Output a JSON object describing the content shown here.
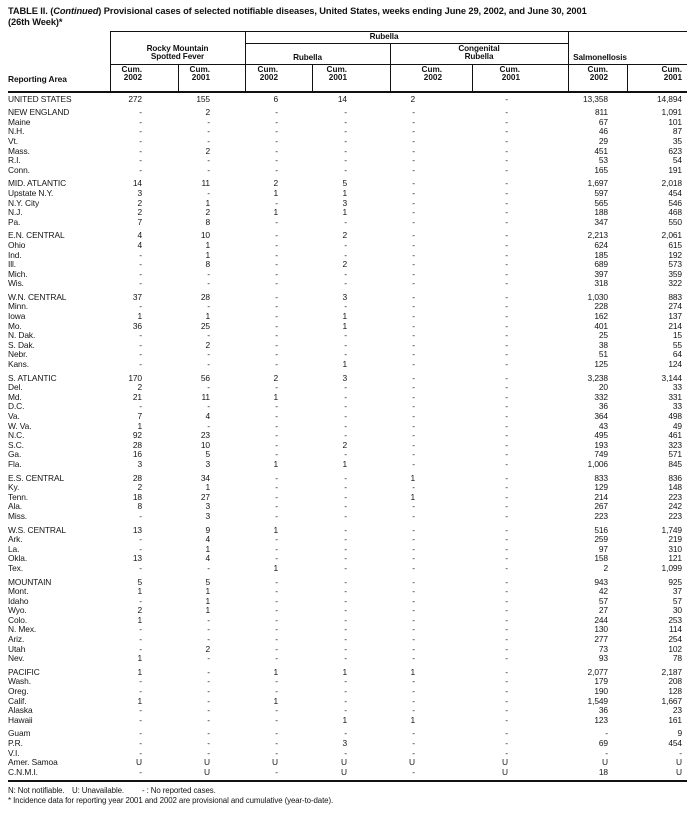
{
  "title": {
    "prefix": "TABLE II. (",
    "continued": "Continued",
    "rest": ") Provisional cases of selected notifiable diseases, United States, weeks ending June 29, 2002, and June 30, 2001",
    "line2": "(26th Week)*"
  },
  "header": {
    "reporting_area": "Reporting Area",
    "supergroup": "Rubella",
    "rmsf_line1": "Rocky Mountain",
    "rmsf_line2": "Spotted Fever",
    "rubella": "Rubella",
    "congenital_line1": "Congenital",
    "congenital_line2": "Rubella",
    "salmonellosis": "Salmonellosis",
    "cum": "Cum.",
    "y2002": "2002",
    "y2001": "2001"
  },
  "table": {
    "column_keys": [
      "Rocky Mountain Spotted Fever Cum. 2002",
      "Rocky Mountain Spotted Fever Cum. 2001",
      "Rubella Cum. 2002",
      "Rubella Cum. 2001",
      "Congenital Rubella Cum. 2002",
      "Congenital Rubella Cum. 2001",
      "Salmonellosis Cum. 2002",
      "Salmonellosis Cum. 2001"
    ],
    "rows": [
      {
        "area": "UNITED STATES",
        "gap": false,
        "values": [
          "272",
          "155",
          "6",
          "14",
          "2",
          "-",
          "13,358",
          "14,894"
        ]
      },
      {
        "area": "NEW ENGLAND",
        "gap": true,
        "values": [
          "-",
          "2",
          "-",
          "-",
          "-",
          "-",
          "811",
          "1,091"
        ]
      },
      {
        "area": "Maine",
        "gap": false,
        "values": [
          "-",
          "-",
          "-",
          "-",
          "-",
          "-",
          "67",
          "101"
        ]
      },
      {
        "area": "N.H.",
        "gap": false,
        "values": [
          "-",
          "-",
          "-",
          "-",
          "-",
          "-",
          "46",
          "87"
        ]
      },
      {
        "area": "Vt.",
        "gap": false,
        "values": [
          "-",
          "-",
          "-",
          "-",
          "-",
          "-",
          "29",
          "35"
        ]
      },
      {
        "area": "Mass.",
        "gap": false,
        "values": [
          "-",
          "2",
          "-",
          "-",
          "-",
          "-",
          "451",
          "623"
        ]
      },
      {
        "area": "R.I.",
        "gap": false,
        "values": [
          "-",
          "-",
          "-",
          "-",
          "-",
          "-",
          "53",
          "54"
        ]
      },
      {
        "area": "Conn.",
        "gap": false,
        "values": [
          "-",
          "-",
          "-",
          "-",
          "-",
          "-",
          "165",
          "191"
        ]
      },
      {
        "area": "MID. ATLANTIC",
        "gap": true,
        "values": [
          "14",
          "11",
          "2",
          "5",
          "-",
          "-",
          "1,697",
          "2,018"
        ]
      },
      {
        "area": "Upstate N.Y.",
        "gap": false,
        "values": [
          "3",
          "-",
          "1",
          "1",
          "-",
          "-",
          "597",
          "454"
        ]
      },
      {
        "area": "N.Y. City",
        "gap": false,
        "values": [
          "2",
          "1",
          "-",
          "3",
          "-",
          "-",
          "565",
          "546"
        ]
      },
      {
        "area": "N.J.",
        "gap": false,
        "values": [
          "2",
          "2",
          "1",
          "1",
          "-",
          "-",
          "188",
          "468"
        ]
      },
      {
        "area": "Pa.",
        "gap": false,
        "values": [
          "7",
          "8",
          "-",
          "-",
          "-",
          "-",
          "347",
          "550"
        ]
      },
      {
        "area": "E.N. CENTRAL",
        "gap": true,
        "values": [
          "4",
          "10",
          "-",
          "2",
          "-",
          "-",
          "2,213",
          "2,061"
        ]
      },
      {
        "area": "Ohio",
        "gap": false,
        "values": [
          "4",
          "1",
          "-",
          "-",
          "-",
          "-",
          "624",
          "615"
        ]
      },
      {
        "area": "Ind.",
        "gap": false,
        "values": [
          "-",
          "1",
          "-",
          "-",
          "-",
          "-",
          "185",
          "192"
        ]
      },
      {
        "area": "Ill.",
        "gap": false,
        "values": [
          "-",
          "8",
          "-",
          "2",
          "-",
          "-",
          "689",
          "573"
        ]
      },
      {
        "area": "Mich.",
        "gap": false,
        "values": [
          "-",
          "-",
          "-",
          "-",
          "-",
          "-",
          "397",
          "359"
        ]
      },
      {
        "area": "Wis.",
        "gap": false,
        "values": [
          "-",
          "-",
          "-",
          "-",
          "-",
          "-",
          "318",
          "322"
        ]
      },
      {
        "area": "W.N. CENTRAL",
        "gap": true,
        "values": [
          "37",
          "28",
          "-",
          "3",
          "-",
          "-",
          "1,030",
          "883"
        ]
      },
      {
        "area": "Minn.",
        "gap": false,
        "values": [
          "-",
          "-",
          "-",
          "-",
          "-",
          "-",
          "228",
          "274"
        ]
      },
      {
        "area": "Iowa",
        "gap": false,
        "values": [
          "1",
          "1",
          "-",
          "1",
          "-",
          "-",
          "162",
          "137"
        ]
      },
      {
        "area": "Mo.",
        "gap": false,
        "values": [
          "36",
          "25",
          "-",
          "1",
          "-",
          "-",
          "401",
          "214"
        ]
      },
      {
        "area": "N. Dak.",
        "gap": false,
        "values": [
          "-",
          "-",
          "-",
          "-",
          "-",
          "-",
          "25",
          "15"
        ]
      },
      {
        "area": "S. Dak.",
        "gap": false,
        "values": [
          "-",
          "2",
          "-",
          "-",
          "-",
          "-",
          "38",
          "55"
        ]
      },
      {
        "area": "Nebr.",
        "gap": false,
        "values": [
          "-",
          "-",
          "-",
          "-",
          "-",
          "-",
          "51",
          "64"
        ]
      },
      {
        "area": "Kans.",
        "gap": false,
        "values": [
          "-",
          "-",
          "-",
          "1",
          "-",
          "-",
          "125",
          "124"
        ]
      },
      {
        "area": "S. ATLANTIC",
        "gap": true,
        "values": [
          "170",
          "56",
          "2",
          "3",
          "-",
          "-",
          "3,238",
          "3,144"
        ]
      },
      {
        "area": "Del.",
        "gap": false,
        "values": [
          "2",
          "-",
          "-",
          "-",
          "-",
          "-",
          "20",
          "33"
        ]
      },
      {
        "area": "Md.",
        "gap": false,
        "values": [
          "21",
          "11",
          "1",
          "-",
          "-",
          "-",
          "332",
          "331"
        ]
      },
      {
        "area": "D.C.",
        "gap": false,
        "values": [
          "-",
          "-",
          "-",
          "-",
          "-",
          "-",
          "36",
          "33"
        ]
      },
      {
        "area": "Va.",
        "gap": false,
        "values": [
          "7",
          "4",
          "-",
          "-",
          "-",
          "-",
          "364",
          "498"
        ]
      },
      {
        "area": "W. Va.",
        "gap": false,
        "values": [
          "1",
          "-",
          "-",
          "-",
          "-",
          "-",
          "43",
          "49"
        ]
      },
      {
        "area": "N.C.",
        "gap": false,
        "values": [
          "92",
          "23",
          "-",
          "-",
          "-",
          "-",
          "495",
          "461"
        ]
      },
      {
        "area": "S.C.",
        "gap": false,
        "values": [
          "28",
          "10",
          "-",
          "2",
          "-",
          "-",
          "193",
          "323"
        ]
      },
      {
        "area": "Ga.",
        "gap": false,
        "values": [
          "16",
          "5",
          "-",
          "-",
          "-",
          "-",
          "749",
          "571"
        ]
      },
      {
        "area": "Fla.",
        "gap": false,
        "values": [
          "3",
          "3",
          "1",
          "1",
          "-",
          "-",
          "1,006",
          "845"
        ]
      },
      {
        "area": "E.S. CENTRAL",
        "gap": true,
        "values": [
          "28",
          "34",
          "-",
          "-",
          "1",
          "-",
          "833",
          "836"
        ]
      },
      {
        "area": "Ky.",
        "gap": false,
        "values": [
          "2",
          "1",
          "-",
          "-",
          "-",
          "-",
          "129",
          "148"
        ]
      },
      {
        "area": "Tenn.",
        "gap": false,
        "values": [
          "18",
          "27",
          "-",
          "-",
          "1",
          "-",
          "214",
          "223"
        ]
      },
      {
        "area": "Ala.",
        "gap": false,
        "values": [
          "8",
          "3",
          "-",
          "-",
          "-",
          "-",
          "267",
          "242"
        ]
      },
      {
        "area": "Miss.",
        "gap": false,
        "values": [
          "-",
          "3",
          "-",
          "-",
          "-",
          "-",
          "223",
          "223"
        ]
      },
      {
        "area": "W.S. CENTRAL",
        "gap": true,
        "values": [
          "13",
          "9",
          "1",
          "-",
          "-",
          "-",
          "516",
          "1,749"
        ]
      },
      {
        "area": "Ark.",
        "gap": false,
        "values": [
          "-",
          "4",
          "-",
          "-",
          "-",
          "-",
          "259",
          "219"
        ]
      },
      {
        "area": "La.",
        "gap": false,
        "values": [
          "-",
          "1",
          "-",
          "-",
          "-",
          "-",
          "97",
          "310"
        ]
      },
      {
        "area": "Okla.",
        "gap": false,
        "values": [
          "13",
          "4",
          "-",
          "-",
          "-",
          "-",
          "158",
          "121"
        ]
      },
      {
        "area": "Tex.",
        "gap": false,
        "values": [
          "-",
          "-",
          "1",
          "-",
          "-",
          "-",
          "2",
          "1,099"
        ]
      },
      {
        "area": "MOUNTAIN",
        "gap": true,
        "values": [
          "5",
          "5",
          "-",
          "-",
          "-",
          "-",
          "943",
          "925"
        ]
      },
      {
        "area": "Mont.",
        "gap": false,
        "values": [
          "1",
          "1",
          "-",
          "-",
          "-",
          "-",
          "42",
          "37"
        ]
      },
      {
        "area": "Idaho",
        "gap": false,
        "values": [
          "-",
          "1",
          "-",
          "-",
          "-",
          "-",
          "57",
          "57"
        ]
      },
      {
        "area": "Wyo.",
        "gap": false,
        "values": [
          "2",
          "1",
          "-",
          "-",
          "-",
          "-",
          "27",
          "30"
        ]
      },
      {
        "area": "Colo.",
        "gap": false,
        "values": [
          "1",
          "-",
          "-",
          "-",
          "-",
          "-",
          "244",
          "253"
        ]
      },
      {
        "area": "N. Mex.",
        "gap": false,
        "values": [
          "-",
          "-",
          "-",
          "-",
          "-",
          "-",
          "130",
          "114"
        ]
      },
      {
        "area": "Ariz.",
        "gap": false,
        "values": [
          "-",
          "-",
          "-",
          "-",
          "-",
          "-",
          "277",
          "254"
        ]
      },
      {
        "area": "Utah",
        "gap": false,
        "values": [
          "-",
          "2",
          "-",
          "-",
          "-",
          "-",
          "73",
          "102"
        ]
      },
      {
        "area": "Nev.",
        "gap": false,
        "values": [
          "1",
          "-",
          "-",
          "-",
          "-",
          "-",
          "93",
          "78"
        ]
      },
      {
        "area": "PACIFIC",
        "gap": true,
        "values": [
          "1",
          "-",
          "1",
          "1",
          "1",
          "-",
          "2,077",
          "2,187"
        ]
      },
      {
        "area": "Wash.",
        "gap": false,
        "values": [
          "-",
          "-",
          "-",
          "-",
          "-",
          "-",
          "179",
          "208"
        ]
      },
      {
        "area": "Oreg.",
        "gap": false,
        "values": [
          "-",
          "-",
          "-",
          "-",
          "-",
          "-",
          "190",
          "128"
        ]
      },
      {
        "area": "Calif.",
        "gap": false,
        "values": [
          "1",
          "-",
          "1",
          "-",
          "-",
          "-",
          "1,549",
          "1,667"
        ]
      },
      {
        "area": "Alaska",
        "gap": false,
        "values": [
          "-",
          "-",
          "-",
          "-",
          "-",
          "-",
          "36",
          "23"
        ]
      },
      {
        "area": "Hawaii",
        "gap": false,
        "values": [
          "-",
          "-",
          "-",
          "1",
          "1",
          "-",
          "123",
          "161"
        ]
      },
      {
        "area": "Guam",
        "gap": true,
        "values": [
          "-",
          "-",
          "-",
          "-",
          "-",
          "-",
          "-",
          "9"
        ]
      },
      {
        "area": "P.R.",
        "gap": false,
        "values": [
          "-",
          "-",
          "-",
          "3",
          "-",
          "-",
          "69",
          "454"
        ]
      },
      {
        "area": "V.I.",
        "gap": false,
        "values": [
          "-",
          "-",
          "-",
          "-",
          "-",
          "-",
          "-",
          "-"
        ]
      },
      {
        "area": "Amer. Samoa",
        "gap": false,
        "values": [
          "U",
          "U",
          "U",
          "U",
          "U",
          "U",
          "U",
          "U"
        ]
      },
      {
        "area": "C.N.M.I.",
        "gap": false,
        "values": [
          "-",
          "U",
          "-",
          "U",
          "-",
          "U",
          "18",
          "U"
        ]
      }
    ]
  },
  "footnotes": {
    "not_notifiable": "N: Not notifiable.",
    "unavailable": "U: Unavailable.",
    "no_cases": "- : No reported cases.",
    "incidence": "* Incidence data for reporting year 2001 and 2002 are provisional and cumulative (year-to-date)."
  }
}
